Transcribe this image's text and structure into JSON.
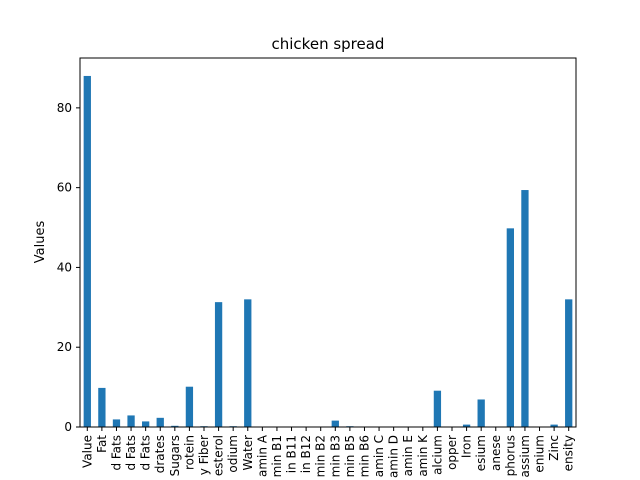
{
  "chart_data": {
    "type": "bar",
    "title": "chicken spread",
    "xlabel": "",
    "ylabel": "Values",
    "ylim": [
      0,
      92.5
    ],
    "yticks": [
      0,
      20,
      40,
      60,
      80
    ],
    "grid": false,
    "legend": "none",
    "bar_color": "#1f77b4",
    "categories": [
      "Value",
      "Fat",
      "d Fats",
      "d Fats",
      "d Fats",
      "drates",
      "Sugars",
      "rotein",
      "y Fiber",
      "esterol",
      "odium",
      "Water",
      "amin A",
      "min B1",
      "in B11",
      "in B12",
      "min B2",
      "min B3",
      "min B5",
      "min B6",
      "amin C",
      "amin D",
      "amin E",
      "amin K",
      "alcium",
      "opper",
      "Iron",
      "esium",
      "anese",
      "phorus",
      "assium",
      "enium",
      "Zinc",
      "ensity"
    ],
    "values": [
      88.0,
      9.8,
      1.9,
      2.9,
      1.4,
      2.3,
      0.3,
      10.1,
      0.2,
      31.3,
      0.2,
      32.0,
      0.0,
      0.0,
      0.0,
      0.0,
      0.0,
      1.6,
      0.2,
      0.1,
      0.0,
      0.0,
      0.0,
      0.0,
      9.1,
      0.0,
      0.6,
      6.9,
      0.0,
      49.8,
      59.4,
      0.0,
      0.6,
      32.0
    ]
  }
}
